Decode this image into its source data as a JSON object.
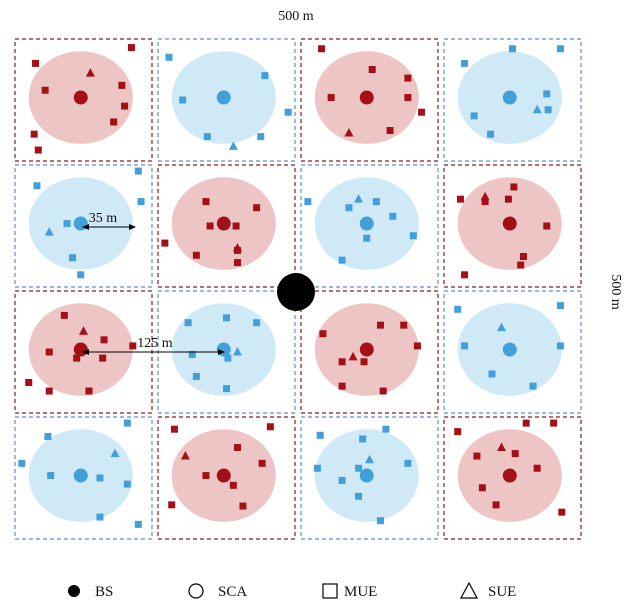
{
  "labels": {
    "width": "500 m",
    "height": "500 m",
    "radius": "35 m",
    "distance": "125 m"
  },
  "legend": [
    {
      "symbol": "bs",
      "label": "BS"
    },
    {
      "symbol": "sca",
      "label": "SCA"
    },
    {
      "symbol": "mue",
      "label": "MUE"
    },
    {
      "symbol": "sue",
      "label": "SUE"
    }
  ],
  "colors": {
    "red_fill": "#eec5c5",
    "red_mark": "#a31116",
    "red_border": "#8b1a1a",
    "blue_fill": "#cfe9f6",
    "blue_mark": "#41a0d9",
    "blue_border": "#5b8ee0",
    "bs": "#000000"
  },
  "cells": [
    {
      "color": "red",
      "mue": [
        [
          0.15,
          0.2
        ],
        [
          0.85,
          0.07
        ],
        [
          0.22,
          0.42
        ],
        [
          0.78,
          0.38
        ],
        [
          0.8,
          0.55
        ],
        [
          0.72,
          0.68
        ],
        [
          0.14,
          0.78
        ],
        [
          0.17,
          0.91
        ]
      ],
      "sue": [
        [
          0.55,
          0.28
        ]
      ]
    },
    {
      "color": "blue",
      "mue": [
        [
          0.08,
          0.15
        ],
        [
          0.78,
          0.3
        ],
        [
          0.18,
          0.5
        ],
        [
          0.95,
          0.6
        ],
        [
          0.36,
          0.8
        ],
        [
          0.75,
          0.8
        ]
      ],
      "sue": [
        [
          0.55,
          0.88
        ]
      ]
    },
    {
      "color": "red",
      "mue": [
        [
          0.15,
          0.08
        ],
        [
          0.52,
          0.25
        ],
        [
          0.78,
          0.32
        ],
        [
          0.22,
          0.48
        ],
        [
          0.78,
          0.48
        ],
        [
          0.88,
          0.6
        ],
        [
          0.65,
          0.75
        ]
      ],
      "sue": [
        [
          0.35,
          0.77
        ]
      ]
    },
    {
      "color": "blue",
      "mue": [
        [
          0.5,
          0.08
        ],
        [
          0.15,
          0.2
        ],
        [
          0.85,
          0.08
        ],
        [
          0.75,
          0.45
        ],
        [
          0.22,
          0.63
        ],
        [
          0.76,
          0.58
        ],
        [
          0.34,
          0.78
        ]
      ],
      "sue": [
        [
          0.68,
          0.58
        ]
      ]
    },
    {
      "color": "blue",
      "mue": [
        [
          0.16,
          0.17
        ],
        [
          0.9,
          0.05
        ],
        [
          0.92,
          0.3
        ],
        [
          0.38,
          0.48
        ],
        [
          0.42,
          0.76
        ],
        [
          0.48,
          0.9
        ]
      ],
      "sue": [
        [
          0.25,
          0.55
        ]
      ]
    },
    {
      "color": "red",
      "mue": [
        [
          0.35,
          0.3
        ],
        [
          0.72,
          0.35
        ],
        [
          0.38,
          0.5
        ],
        [
          0.57,
          0.5
        ],
        [
          0.58,
          0.7
        ],
        [
          0.05,
          0.64
        ],
        [
          0.28,
          0.74
        ],
        [
          0.58,
          0.8
        ]
      ],
      "sue": [
        [
          0.58,
          0.68
        ]
      ]
    },
    {
      "color": "blue",
      "mue": [
        [
          0.05,
          0.3
        ],
        [
          0.35,
          0.35
        ],
        [
          0.55,
          0.3
        ],
        [
          0.67,
          0.42
        ],
        [
          0.48,
          0.6
        ],
        [
          0.82,
          0.58
        ],
        [
          0.3,
          0.78
        ]
      ],
      "sue": [
        [
          0.42,
          0.28
        ]
      ]
    },
    {
      "color": "red",
      "mue": [
        [
          0.12,
          0.28
        ],
        [
          0.3,
          0.3
        ],
        [
          0.47,
          0.28
        ],
        [
          0.51,
          0.18
        ],
        [
          0.75,
          0.5
        ],
        [
          0.58,
          0.75
        ],
        [
          0.56,
          0.82
        ],
        [
          0.15,
          0.9
        ]
      ],
      "sue": [
        [
          0.3,
          0.26
        ]
      ]
    },
    {
      "color": "red",
      "mue": [
        [
          0.36,
          0.2
        ],
        [
          0.65,
          0.4
        ],
        [
          0.25,
          0.5
        ],
        [
          0.45,
          0.55
        ],
        [
          0.64,
          0.55
        ],
        [
          0.86,
          0.45
        ],
        [
          0.1,
          0.75
        ],
        [
          0.25,
          0.82
        ],
        [
          0.54,
          0.82
        ]
      ],
      "sue": [
        [
          0.5,
          0.33
        ]
      ]
    },
    {
      "color": "blue",
      "mue": [
        [
          0.5,
          0.22
        ],
        [
          0.22,
          0.26
        ],
        [
          0.72,
          0.26
        ],
        [
          0.25,
          0.52
        ],
        [
          0.51,
          0.55
        ],
        [
          0.28,
          0.7
        ],
        [
          0.5,
          0.8
        ]
      ],
      "sue": [
        [
          0.58,
          0.5
        ]
      ]
    },
    {
      "color": "red",
      "mue": [
        [
          0.16,
          0.35
        ],
        [
          0.58,
          0.28
        ],
        [
          0.75,
          0.28
        ],
        [
          0.3,
          0.58
        ],
        [
          0.46,
          0.58
        ],
        [
          0.85,
          0.45
        ],
        [
          0.6,
          0.82
        ],
        [
          0.3,
          0.78
        ]
      ],
      "sue": [
        [
          0.38,
          0.54
        ]
      ]
    },
    {
      "color": "blue",
      "mue": [
        [
          0.1,
          0.15
        ],
        [
          0.85,
          0.12
        ],
        [
          0.15,
          0.45
        ],
        [
          0.85,
          0.45
        ],
        [
          0.35,
          0.68
        ],
        [
          0.65,
          0.78
        ]
      ],
      "sue": [
        [
          0.42,
          0.3
        ]
      ]
    },
    {
      "color": "blue",
      "mue": [
        [
          0.24,
          0.16
        ],
        [
          0.82,
          0.05
        ],
        [
          0.05,
          0.38
        ],
        [
          0.26,
          0.48
        ],
        [
          0.62,
          0.5
        ],
        [
          0.82,
          0.55
        ],
        [
          0.62,
          0.82
        ],
        [
          0.9,
          0.88
        ]
      ],
      "sue": [
        [
          0.73,
          0.3
        ]
      ]
    },
    {
      "color": "red",
      "mue": [
        [
          0.12,
          0.1
        ],
        [
          0.82,
          0.08
        ],
        [
          0.35,
          0.48
        ],
        [
          0.58,
          0.25
        ],
        [
          0.76,
          0.38
        ],
        [
          0.55,
          0.56
        ],
        [
          0.62,
          0.73
        ],
        [
          0.1,
          0.72
        ]
      ],
      "sue": [
        [
          0.2,
          0.32
        ]
      ]
    },
    {
      "color": "blue",
      "mue": [
        [
          0.14,
          0.15
        ],
        [
          0.45,
          0.18
        ],
        [
          0.62,
          0.1
        ],
        [
          0.12,
          0.42
        ],
        [
          0.3,
          0.52
        ],
        [
          0.42,
          0.42
        ],
        [
          0.78,
          0.38
        ],
        [
          0.42,
          0.65
        ],
        [
          0.58,
          0.85
        ]
      ],
      "sue": [
        [
          0.5,
          0.35
        ]
      ]
    },
    {
      "color": "red",
      "mue": [
        [
          0.1,
          0.12
        ],
        [
          0.6,
          0.05
        ],
        [
          0.8,
          0.05
        ],
        [
          0.24,
          0.32
        ],
        [
          0.52,
          0.3
        ],
        [
          0.68,
          0.42
        ],
        [
          0.28,
          0.58
        ],
        [
          0.38,
          0.72
        ],
        [
          0.86,
          0.78
        ]
      ],
      "sue": [
        [
          0.42,
          0.25
        ]
      ]
    }
  ]
}
